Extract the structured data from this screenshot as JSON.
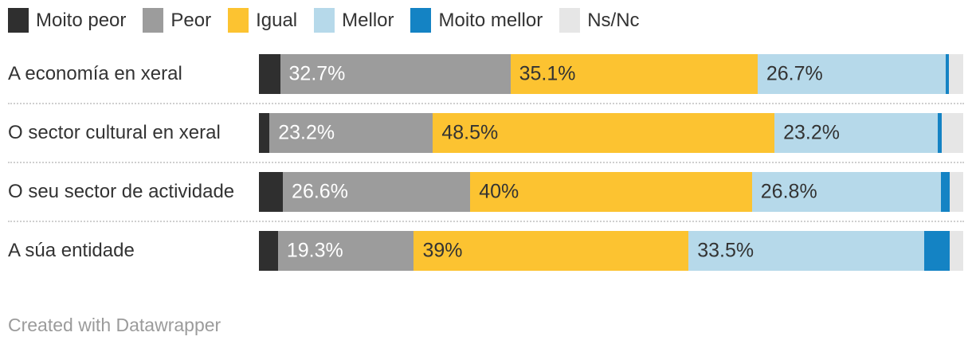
{
  "chart_data": {
    "type": "bar",
    "variant": "stacked-horizontal",
    "unit": "%",
    "legend_position": "top",
    "axis_visible": false,
    "xlim": [
      0,
      100
    ],
    "categories": [
      "A economía en xeral",
      "O sector cultural en xeral",
      "O seu sector de actividade",
      "A súa entidade"
    ],
    "series": [
      {
        "name": "Moito peor",
        "color": "#2f2f2f",
        "values": [
          3.0,
          1.5,
          3.4,
          2.7
        ]
      },
      {
        "name": "Peor",
        "color": "#9c9c9c",
        "label_color": "#ffffff",
        "values": [
          32.7,
          23.2,
          26.6,
          19.3
        ]
      },
      {
        "name": "Igual",
        "color": "#fcc331",
        "label_color": "#333333",
        "values": [
          35.1,
          48.5,
          40,
          39
        ]
      },
      {
        "name": "Mellor",
        "color": "#b6d9ea",
        "label_color": "#333333",
        "values": [
          26.7,
          23.2,
          26.8,
          33.5
        ]
      },
      {
        "name": "Moito mellor",
        "color": "#1483c4",
        "values": [
          0.5,
          0.5,
          1.3,
          3.6
        ]
      },
      {
        "name": "Ns/Nc",
        "color": "#e6e6e6",
        "values": [
          2.0,
          3.1,
          1.9,
          1.9
        ]
      }
    ],
    "segment_labels": [
      [
        null,
        "32.7%",
        "35.1%",
        "26.7%",
        null,
        null
      ],
      [
        null,
        "23.2%",
        "48.5%",
        "23.2%",
        null,
        null
      ],
      [
        null,
        "26.6%",
        "40%",
        "26.8%",
        null,
        null
      ],
      [
        null,
        "19.3%",
        "39%",
        "33.5%",
        null,
        null
      ]
    ]
  },
  "footer": {
    "attribution": "Created with Datawrapper"
  }
}
